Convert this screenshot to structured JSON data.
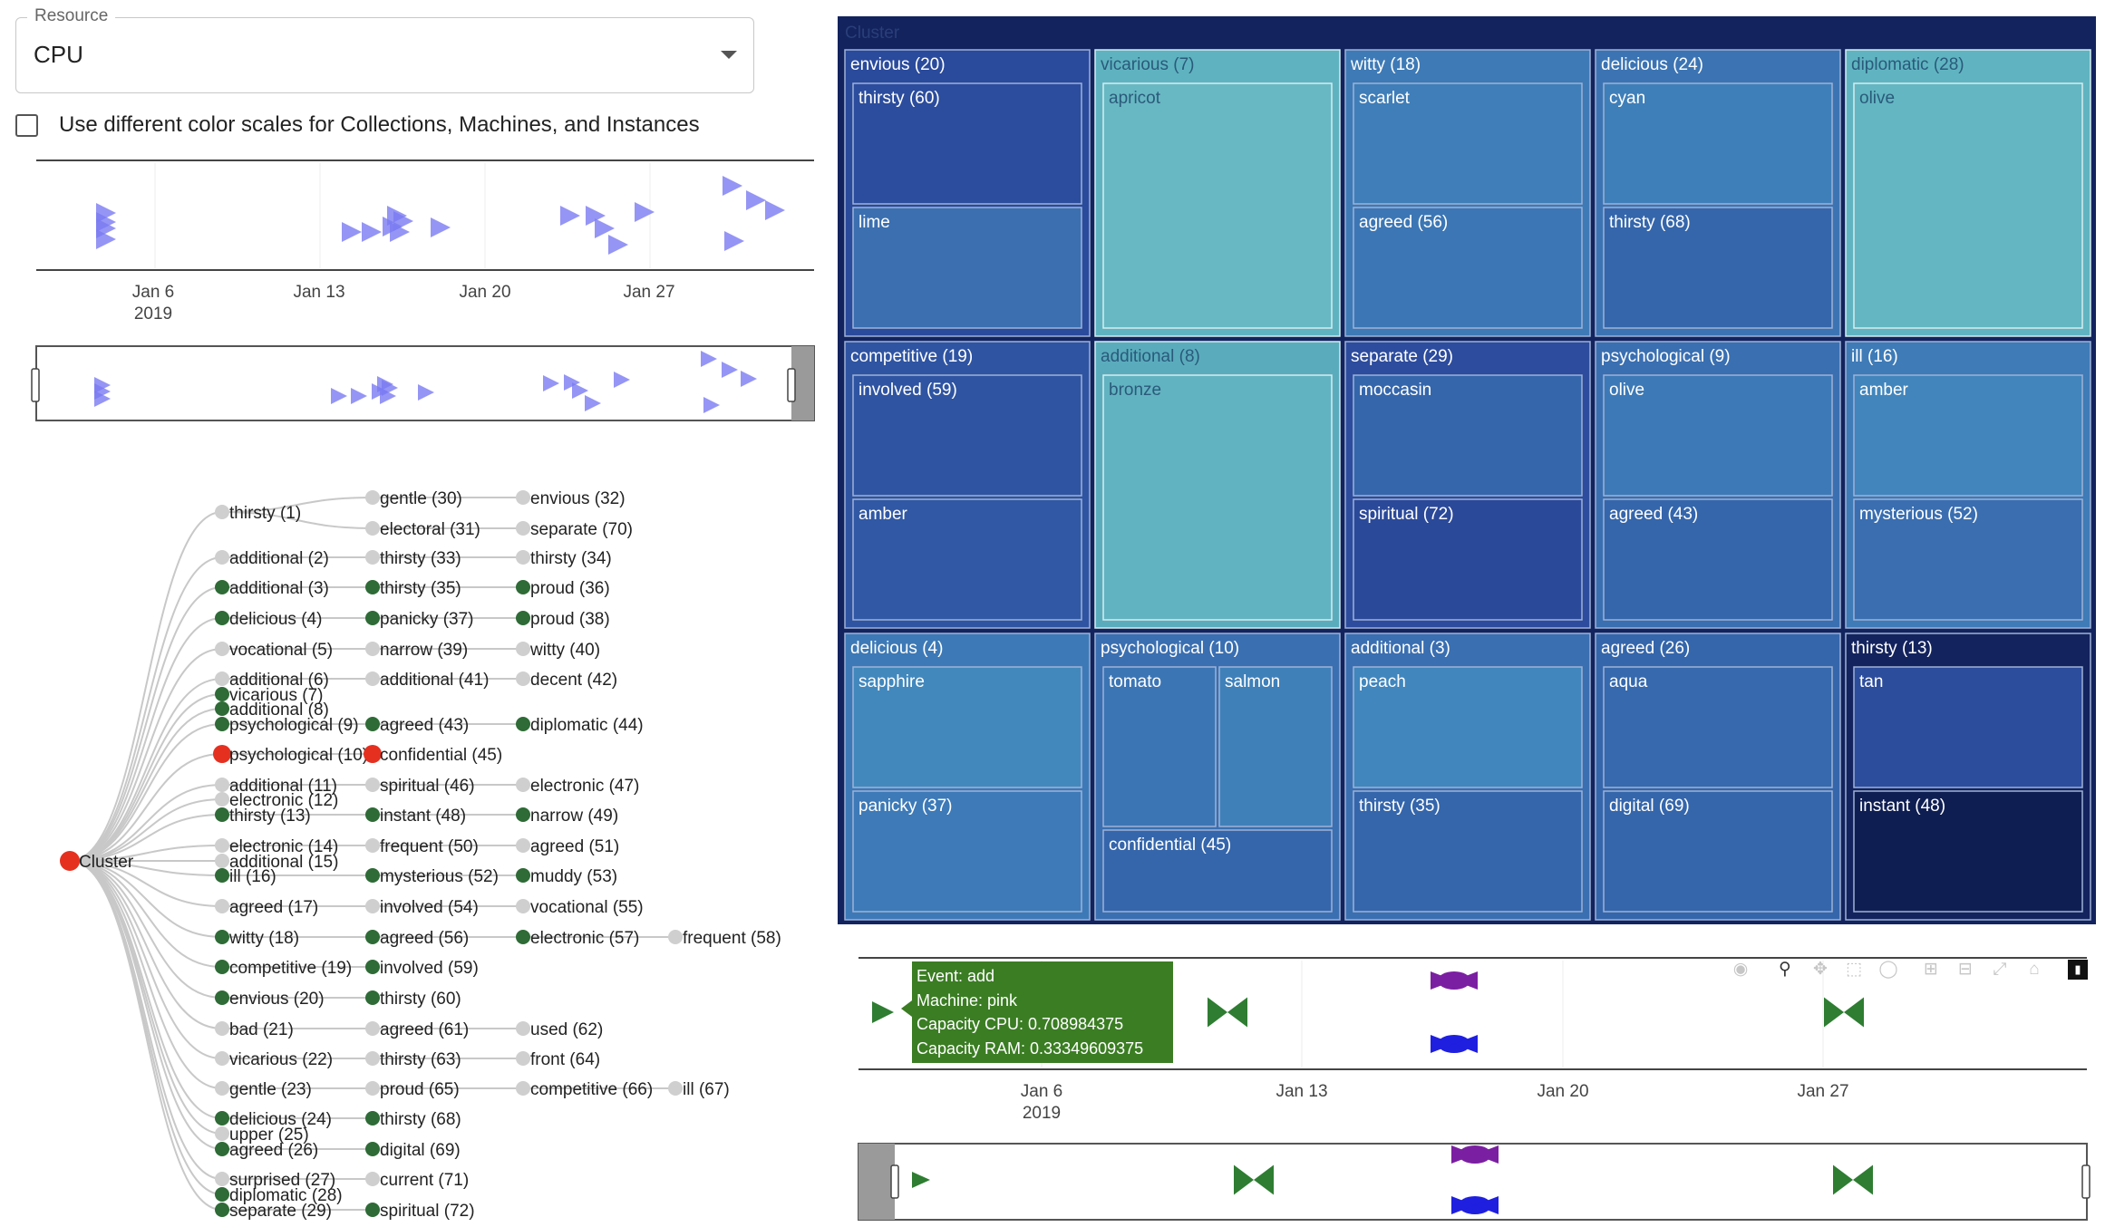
{
  "resource": {
    "legend": "Resource",
    "value": "CPU"
  },
  "color_toggle": {
    "label": "Use different color scales for Collections, Machines, and Instances",
    "checked": false
  },
  "colors": {
    "marker_blue": "#7b7bf2",
    "bowtie_green": "#2e7d32",
    "bowtie_purple": "#7b1fa2",
    "bowtie_blue": "#1f1fe0",
    "node_green": "#2e6b36",
    "node_red": "#e53020",
    "node_gray": "#cfcfcf",
    "treemap_bg": "#13235e"
  },
  "top_timeline": {
    "ticks": [
      {
        "date": "Jan 6",
        "year": "2019"
      },
      {
        "date": "Jan 13",
        "year": ""
      },
      {
        "date": "Jan 20",
        "year": ""
      },
      {
        "date": "Jan 27",
        "year": ""
      }
    ]
  },
  "tree": {
    "root": "Cluster",
    "level1": [
      {
        "label": "thirsty (1)",
        "status": "gray"
      },
      {
        "label": "additional (2)",
        "status": "gray"
      },
      {
        "label": "additional (3)",
        "status": "green"
      },
      {
        "label": "delicious (4)",
        "status": "green"
      },
      {
        "label": "vocational (5)",
        "status": "gray"
      },
      {
        "label": "additional (6)",
        "status": "gray"
      },
      {
        "label": "vicarious (7)",
        "status": "green"
      },
      {
        "label": "additional (8)",
        "status": "green"
      },
      {
        "label": "psychological (9)",
        "status": "green"
      },
      {
        "label": "psychological (10)",
        "status": "red"
      },
      {
        "label": "additional (11)",
        "status": "gray"
      },
      {
        "label": "electronic (12)",
        "status": "gray"
      },
      {
        "label": "thirsty (13)",
        "status": "green"
      },
      {
        "label": "electronic (14)",
        "status": "gray"
      },
      {
        "label": "additional (15)",
        "status": "gray"
      },
      {
        "label": "ill (16)",
        "status": "green"
      },
      {
        "label": "agreed (17)",
        "status": "gray"
      },
      {
        "label": "witty (18)",
        "status": "green"
      },
      {
        "label": "competitive (19)",
        "status": "green"
      },
      {
        "label": "envious (20)",
        "status": "green"
      },
      {
        "label": "bad (21)",
        "status": "gray"
      },
      {
        "label": "vicarious (22)",
        "status": "gray"
      },
      {
        "label": "gentle (23)",
        "status": "gray"
      },
      {
        "label": "delicious (24)",
        "status": "green"
      },
      {
        "label": "upper (25)",
        "status": "gray"
      },
      {
        "label": "agreed (26)",
        "status": "green"
      },
      {
        "label": "surprised (27)",
        "status": "gray"
      },
      {
        "label": "diplomatic (28)",
        "status": "green"
      },
      {
        "label": "separate (29)",
        "status": "green"
      }
    ],
    "level2": [
      {
        "label": "gentle (30)",
        "status": "gray"
      },
      {
        "label": "electoral (31)",
        "status": "gray"
      },
      {
        "label": "thirsty (33)",
        "status": "gray"
      },
      {
        "label": "thirsty (35)",
        "status": "green"
      },
      {
        "label": "panicky (37)",
        "status": "green"
      },
      {
        "label": "narrow (39)",
        "status": "gray"
      },
      {
        "label": "additional (41)",
        "status": "gray"
      },
      {
        "label": "agreed (43)",
        "status": "green"
      },
      {
        "label": "confidential (45)",
        "status": "red"
      },
      {
        "label": "spiritual (46)",
        "status": "gray"
      },
      {
        "label": "instant (48)",
        "status": "green"
      },
      {
        "label": "frequent (50)",
        "status": "gray"
      },
      {
        "label": "mysterious (52)",
        "status": "green"
      },
      {
        "label": "involved (54)",
        "status": "gray"
      },
      {
        "label": "agreed (56)",
        "status": "green"
      },
      {
        "label": "involved (59)",
        "status": "green"
      },
      {
        "label": "thirsty (60)",
        "status": "green"
      },
      {
        "label": "agreed (61)",
        "status": "gray"
      },
      {
        "label": "thirsty (63)",
        "status": "gray"
      },
      {
        "label": "proud (65)",
        "status": "gray"
      },
      {
        "label": "thirsty (68)",
        "status": "green"
      },
      {
        "label": "digital (69)",
        "status": "green"
      },
      {
        "label": "current (71)",
        "status": "gray"
      },
      {
        "label": "spiritual (72)",
        "status": "green"
      }
    ],
    "level3": [
      {
        "label": "envious (32)",
        "status": "gray"
      },
      {
        "label": "separate (70)",
        "status": "gray"
      },
      {
        "label": "thirsty (34)",
        "status": "gray"
      },
      {
        "label": "proud (36)",
        "status": "green"
      },
      {
        "label": "proud (38)",
        "status": "green"
      },
      {
        "label": "witty (40)",
        "status": "gray"
      },
      {
        "label": "decent (42)",
        "status": "gray"
      },
      {
        "label": "diplomatic (44)",
        "status": "green"
      },
      {
        "label": "electronic (47)",
        "status": "gray"
      },
      {
        "label": "narrow (49)",
        "status": "green"
      },
      {
        "label": "agreed (51)",
        "status": "gray"
      },
      {
        "label": "muddy (53)",
        "status": "green"
      },
      {
        "label": "vocational (55)",
        "status": "gray"
      },
      {
        "label": "electronic (57)",
        "status": "green"
      },
      {
        "label": "used (62)",
        "status": "gray"
      },
      {
        "label": "front (64)",
        "status": "gray"
      },
      {
        "label": "competitive (66)",
        "status": "gray"
      }
    ],
    "level4": [
      {
        "label": "frequent (58)",
        "status": "gray"
      },
      {
        "label": "ill (67)",
        "status": "gray"
      }
    ]
  },
  "treemap": {
    "root": "Cluster",
    "collections": [
      {
        "label": "envious (20)",
        "color": "#2a4a9c",
        "children": [
          {
            "label": "thirsty (60)",
            "color": "#2c4d9d"
          },
          {
            "label": "lime",
            "color": "#3b6fb0"
          }
        ]
      },
      {
        "label": "vicarious (7)",
        "color": "#5fb3c0",
        "children": [
          {
            "label": "apricot",
            "color": "#68b8c3"
          }
        ]
      },
      {
        "label": "witty (18)",
        "color": "#3e7ab6",
        "children": [
          {
            "label": "scarlet",
            "color": "#3f7eb8"
          },
          {
            "label": "agreed (56)",
            "color": "#3c76b4"
          }
        ]
      },
      {
        "label": "delicious (24)",
        "color": "#3c74b3",
        "children": [
          {
            "label": "cyan",
            "color": "#3f7fb9"
          },
          {
            "label": "thirsty (68)",
            "color": "#3566ab"
          }
        ]
      },
      {
        "label": "diplomatic (28)",
        "color": "#60b4c1",
        "children": [
          {
            "label": "olive",
            "color": "#63b6c2"
          }
        ]
      },
      {
        "label": "competitive (19)",
        "color": "#2f54a2",
        "children": [
          {
            "label": "involved (59)",
            "color": "#2f54a1"
          },
          {
            "label": "amber",
            "color": "#3058a4"
          }
        ]
      },
      {
        "label": "additional (8)",
        "color": "#5aacbd",
        "children": [
          {
            "label": "bronze",
            "color": "#62b3c1"
          }
        ]
      },
      {
        "label": "separate (29)",
        "color": "#2d4c9d",
        "children": [
          {
            "label": "moccasin",
            "color": "#3566ab"
          },
          {
            "label": "spiritual (72)",
            "color": "#2b4999"
          }
        ]
      },
      {
        "label": "psychological (9)",
        "color": "#3a6fb1",
        "children": [
          {
            "label": "olive",
            "color": "#3d79b6"
          },
          {
            "label": "agreed (43)",
            "color": "#3566ab"
          }
        ]
      },
      {
        "label": "ill (16)",
        "color": "#3e7bb7",
        "children": [
          {
            "label": "amber",
            "color": "#4185bc"
          },
          {
            "label": "mysterious (52)",
            "color": "#3a6eb0"
          }
        ]
      },
      {
        "label": "delicious (4)",
        "color": "#3d79b6",
        "children": [
          {
            "label": "sapphire",
            "color": "#4288bd"
          },
          {
            "label": "panicky (37)",
            "color": "#3d7ab7"
          }
        ]
      },
      {
        "label": "psychological (10)",
        "color": "#3a6fb1",
        "children": [
          {
            "label": "tomato",
            "color": "#3c75b4"
          },
          {
            "label": "salmon",
            "color": "#3f80b9"
          },
          {
            "label": "confidential (45)",
            "color": "#3566ab"
          }
        ]
      },
      {
        "label": "additional (3)",
        "color": "#3a6fb1",
        "children": [
          {
            "label": "peach",
            "color": "#4186bd"
          },
          {
            "label": "thirsty (35)",
            "color": "#3566ab"
          }
        ]
      },
      {
        "label": "agreed (26)",
        "color": "#3566ab",
        "children": [
          {
            "label": "aqua",
            "color": "#3669ad"
          },
          {
            "label": "digital (69)",
            "color": "#3566ab"
          }
        ]
      },
      {
        "label": "thirsty (13)",
        "color": "#13235e",
        "children": [
          {
            "label": "tan",
            "color": "#2c4c9c"
          },
          {
            "label": "instant (48)",
            "color": "#0f1e52"
          }
        ]
      }
    ]
  },
  "bottom_timeline": {
    "ticks": [
      {
        "date": "Jan 6",
        "year": "2019"
      },
      {
        "date": "Jan 13",
        "year": ""
      },
      {
        "date": "Jan 20",
        "year": ""
      },
      {
        "date": "Jan 27",
        "year": ""
      }
    ],
    "tooltip": {
      "event": "Event: add",
      "machine": "Machine: pink",
      "cpu": "Capacity CPU: 0.708984375",
      "ram": "Capacity RAM: 0.33349609375"
    },
    "modebar": [
      "camera-icon",
      "zoom-icon",
      "pan-icon",
      "box-select-icon",
      "lasso-icon",
      "zoom-in-icon",
      "zoom-out-icon",
      "autoscale-icon",
      "home-icon",
      "plotly-logo-icon"
    ]
  }
}
